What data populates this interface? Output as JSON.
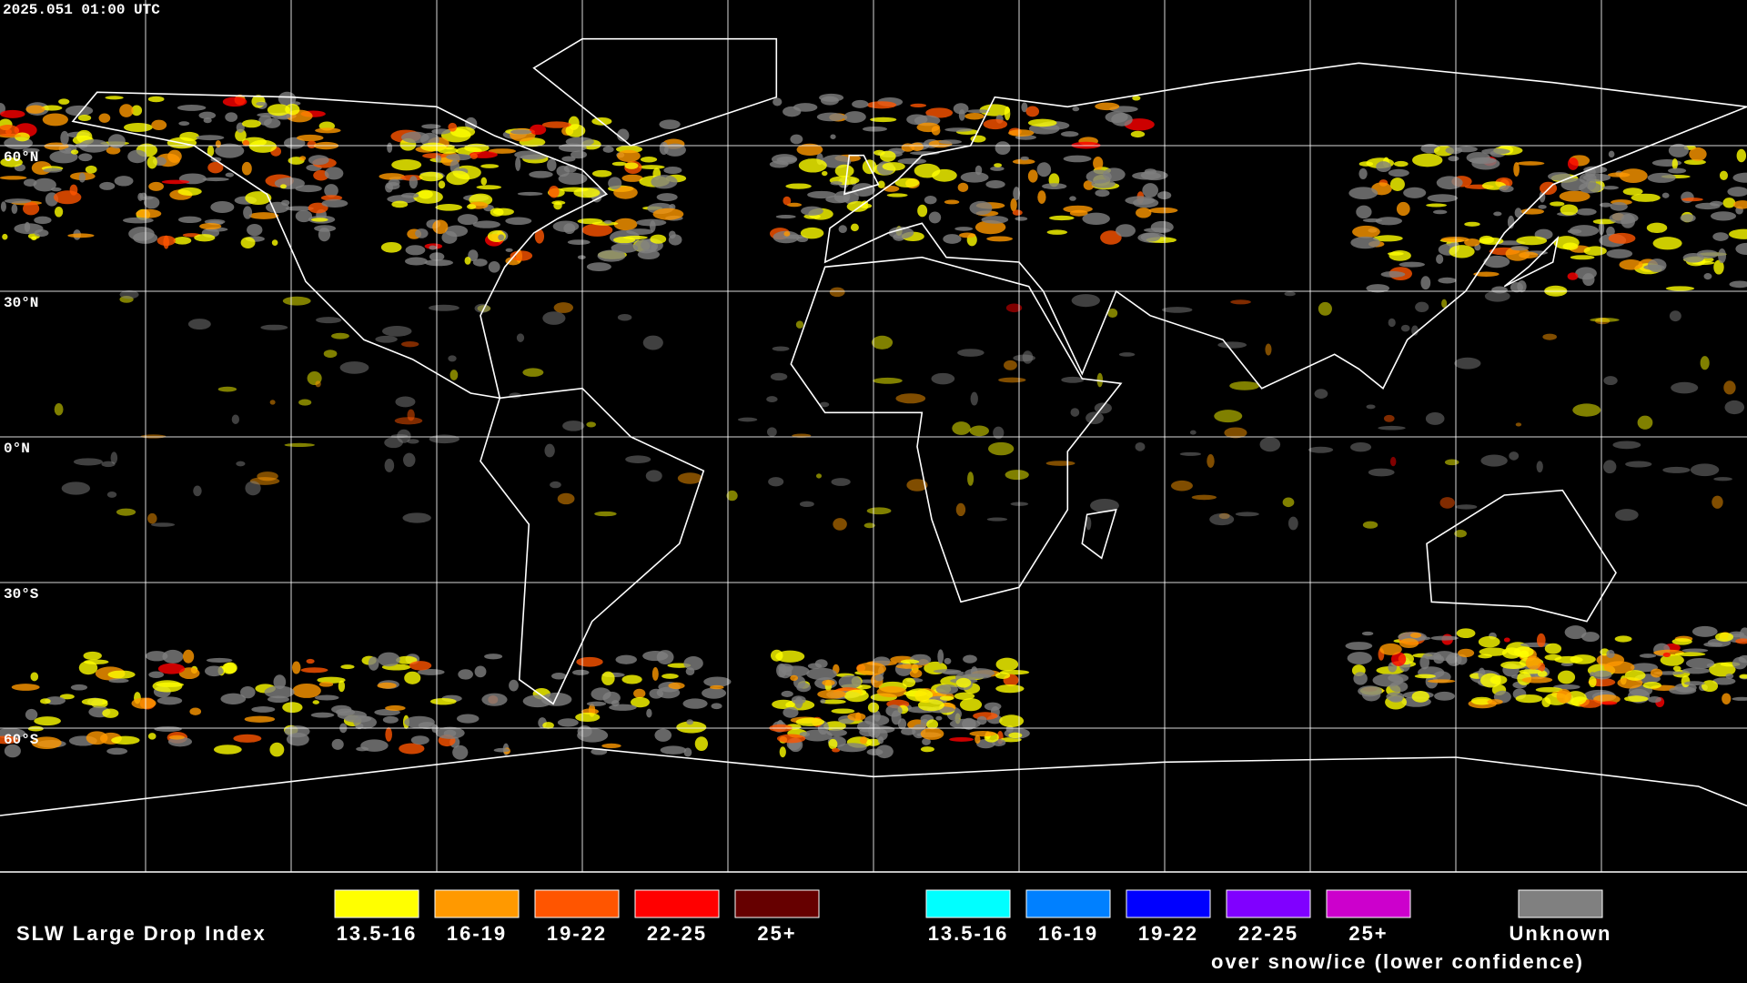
{
  "header": {
    "timestamp": "2025.051 01:00 UTC"
  },
  "map": {
    "latitude_labels": [
      "60°N",
      "30°N",
      "0°N",
      "30°S",
      "60°S"
    ]
  },
  "legend": {
    "title": "SLW Large Drop Index",
    "ranges": [
      {
        "label": "13.5-16",
        "color": "#ffff00"
      },
      {
        "label": "16-19",
        "color": "#ff9900"
      },
      {
        "label": "19-22",
        "color": "#ff5500"
      },
      {
        "label": "22-25",
        "color": "#ff0000"
      },
      {
        "label": "25+",
        "color": "#660000"
      }
    ],
    "snow_ice_ranges": [
      {
        "label": "13.5-16",
        "color": "#00ffff"
      },
      {
        "label": "16-19",
        "color": "#0080ff"
      },
      {
        "label": "19-22",
        "color": "#0000ff"
      },
      {
        "label": "22-25",
        "color": "#8000ff"
      },
      {
        "label": "25+",
        "color": "#cc00cc"
      }
    ],
    "snow_ice_caption": "over snow/ice (lower confidence)",
    "unknown": {
      "label": "Unknown",
      "color": "#808080"
    }
  }
}
